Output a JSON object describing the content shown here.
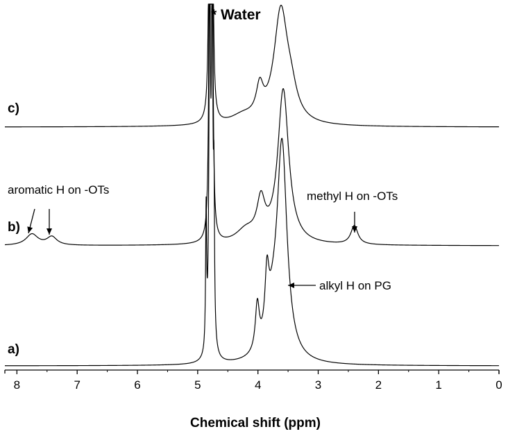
{
  "chart_data": {
    "type": "line",
    "title": "",
    "xlabel": "Chemical shift (ppm)",
    "ylabel": "",
    "xlim": [
      8.2,
      0
    ],
    "x_reversed": true,
    "ticks": [
      "8",
      "7",
      "6",
      "5",
      "4",
      "3",
      "2",
      "1",
      "0"
    ],
    "tick_values": [
      8,
      7,
      6,
      5,
      4,
      3,
      2,
      1,
      0
    ],
    "series": [
      {
        "name": "a)",
        "label": "a)",
        "peaks": [
          {
            "ppm": 4.8,
            "height": 0.88,
            "width": 0.015
          },
          {
            "ppm": 4.76,
            "height": 0.84,
            "width": 0.015
          },
          {
            "ppm": 4.86,
            "height": 0.33,
            "width": 0.01
          },
          {
            "ppm": 4.73,
            "height": 0.32,
            "width": 0.01
          },
          {
            "ppm": 3.6,
            "height": 0.51,
            "width": 0.1
          },
          {
            "ppm": 3.85,
            "height": 0.14,
            "width": 0.04
          },
          {
            "ppm": 4.01,
            "height": 0.11,
            "width": 0.04
          },
          {
            "ppm": 3.75,
            "height": 0.08,
            "width": 0.12
          }
        ]
      },
      {
        "name": "b)",
        "label": "b)",
        "peaks": [
          {
            "ppm": 4.8,
            "height": 0.88,
            "width": 0.015
          },
          {
            "ppm": 4.76,
            "height": 0.84,
            "width": 0.015
          },
          {
            "ppm": 3.58,
            "height": 0.37,
            "width": 0.11
          },
          {
            "ppm": 3.95,
            "height": 0.09,
            "width": 0.08
          },
          {
            "ppm": 4.2,
            "height": 0.03,
            "width": 0.2
          },
          {
            "ppm": 7.75,
            "height": 0.027,
            "width": 0.12
          },
          {
            "ppm": 7.42,
            "height": 0.02,
            "width": 0.1
          },
          {
            "ppm": 2.4,
            "height": 0.045,
            "width": 0.07
          }
        ]
      },
      {
        "name": "c)",
        "label": "c)",
        "peaks": [
          {
            "ppm": 4.8,
            "height": 0.88,
            "width": 0.015
          },
          {
            "ppm": 4.76,
            "height": 0.84,
            "width": 0.015
          },
          {
            "ppm": 3.62,
            "height": 0.27,
            "width": 0.14
          },
          {
            "ppm": 3.97,
            "height": 0.07,
            "width": 0.07
          },
          {
            "ppm": 3.45,
            "height": 0.05,
            "width": 0.12
          },
          {
            "ppm": 4.25,
            "height": 0.02,
            "width": 0.25
          }
        ]
      }
    ],
    "annotations": [
      {
        "text": "* Water",
        "ppm": 4.78,
        "kind": "plain",
        "bold": true
      },
      {
        "text": "aromatic H on -OTs",
        "ppm": 7.6,
        "kind": "arrows-down",
        "arrow_ppms": [
          7.75,
          7.42
        ],
        "series": "b)"
      },
      {
        "text": "methyl H on -OTs",
        "ppm": 2.4,
        "kind": "arrow-down",
        "arrow_ppms": [
          2.4
        ],
        "series": "b)"
      },
      {
        "text": "alkyl H on PG",
        "ppm": 3.5,
        "kind": "arrow-left",
        "arrow_ppms": [
          3.5
        ],
        "series": "a)"
      }
    ]
  }
}
